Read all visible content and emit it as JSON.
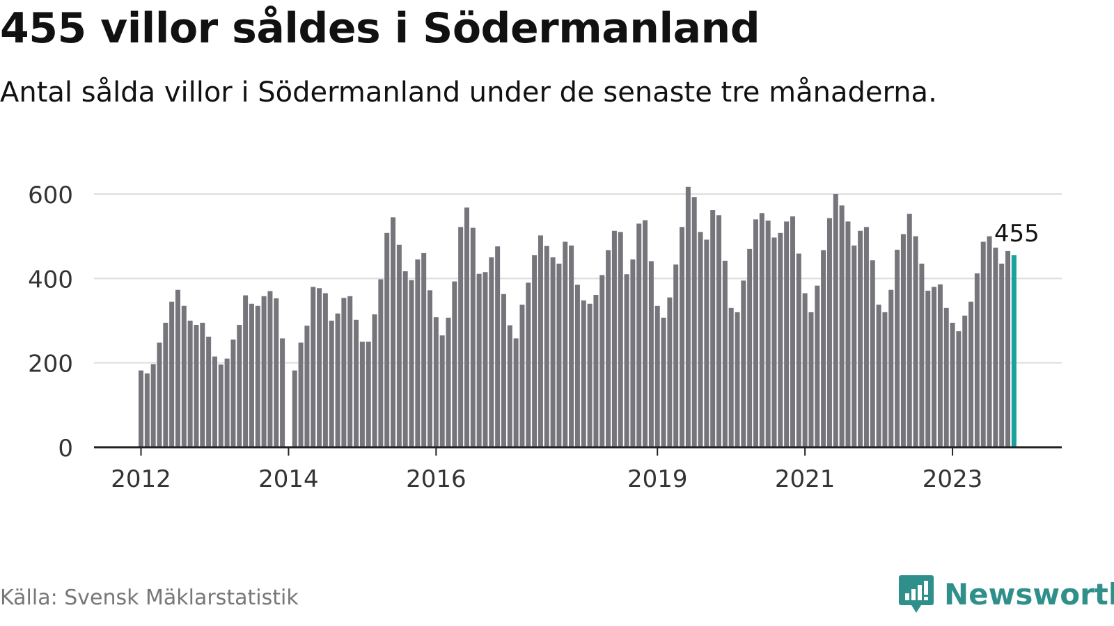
{
  "header": {
    "title": "455 villor såldes i Södermanland",
    "subtitle": "Antal sålda villor i Södermanland under de senaste tre månaderna."
  },
  "footer": {
    "source": "Källa: Svensk Mäklarstatistik",
    "brand": "Newsworthy"
  },
  "colors": {
    "bar": "#76757b",
    "highlight": "#1aa39a",
    "grid": "#dddddd",
    "axis": "#222222",
    "brand": "#2f8f8a"
  },
  "chart_data": {
    "type": "bar",
    "title": "455 villor såldes i Södermanland",
    "ylim": [
      0,
      620
    ],
    "yticks": [
      0,
      200,
      400,
      600
    ],
    "xticks": [
      "2012",
      "2014",
      "2016",
      "2019",
      "2021",
      "2023"
    ],
    "xtick_positions": [
      0,
      24,
      48,
      84,
      108,
      132
    ],
    "highlight_label": "455",
    "grid": true,
    "values": [
      182,
      175,
      197,
      248,
      295,
      345,
      373,
      335,
      300,
      290,
      295,
      262,
      215,
      196,
      210,
      255,
      290,
      360,
      340,
      335,
      358,
      370,
      353,
      258,
      null,
      182,
      248,
      288,
      380,
      377,
      365,
      300,
      317,
      354,
      358,
      302,
      250,
      250,
      315,
      398,
      508,
      545,
      480,
      417,
      396,
      445,
      460,
      372,
      308,
      265,
      307,
      393,
      522,
      568,
      520,
      411,
      415,
      450,
      476,
      363,
      289,
      258,
      338,
      390,
      455,
      502,
      477,
      450,
      435,
      487,
      478,
      385,
      348,
      340,
      361,
      408,
      467,
      513,
      510,
      410,
      445,
      530,
      538,
      441,
      335,
      307,
      355,
      433,
      522,
      617,
      593,
      510,
      492,
      562,
      550,
      442,
      330,
      320,
      395,
      470,
      540,
      555,
      537,
      497,
      508,
      535,
      547,
      459,
      365,
      320,
      383,
      467,
      543,
      600,
      573,
      535,
      478,
      513,
      522,
      443,
      338,
      320,
      373,
      468,
      505,
      553,
      500,
      435,
      371,
      380,
      386,
      330,
      295,
      275,
      312,
      345,
      412,
      487,
      500,
      473,
      435,
      465,
      455
    ]
  }
}
